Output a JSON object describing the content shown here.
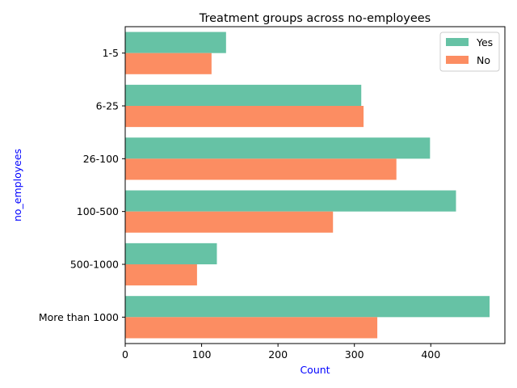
{
  "chart_data": {
    "type": "bar",
    "orientation": "horizontal",
    "title": "Treatment groups across no-employees",
    "xlabel": "Count",
    "ylabel": "no_employees",
    "xlim": [
      0,
      497
    ],
    "xticks": [
      0,
      100,
      200,
      300,
      400
    ],
    "categories": [
      "1-5",
      "6-25",
      "26-100",
      "100-500",
      "500-1000",
      "More than 1000"
    ],
    "series": [
      {
        "name": "Yes",
        "color": "#66c2a5",
        "values": [
          132,
          309,
          399,
          433,
          120,
          477
        ]
      },
      {
        "name": "No",
        "color": "#fc8d62",
        "values": [
          113,
          312,
          355,
          272,
          94,
          330
        ]
      }
    ],
    "legend_position": "top-right",
    "label_color": "#0000ff",
    "grid": false
  }
}
